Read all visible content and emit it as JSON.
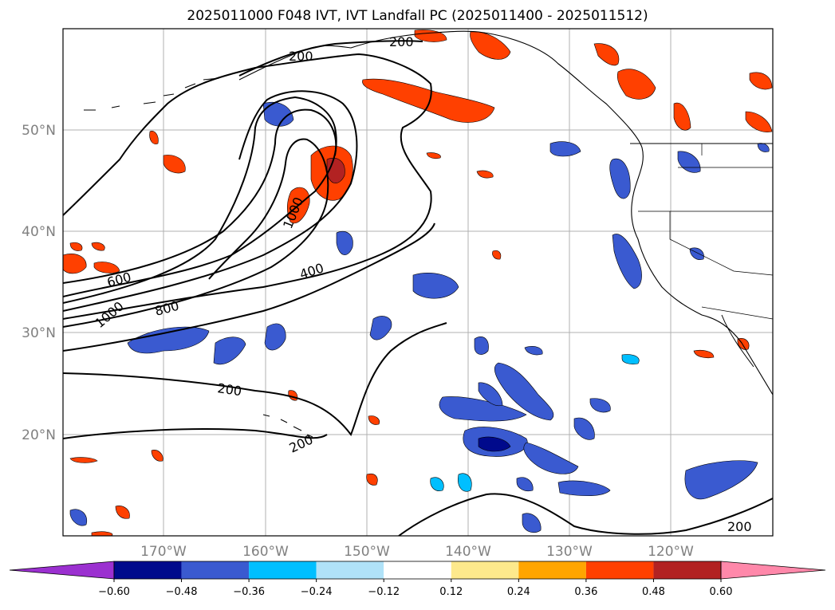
{
  "title": "2025011000 F048 IVT, IVT Landfall PC (2025011400 - 2025011512)",
  "lon_labels": [
    "170°W",
    "160°W",
    "150°W",
    "140°W",
    "130°W",
    "120°W"
  ],
  "lat_labels": [
    "50°N",
    "40°N",
    "30°N",
    "20°N"
  ],
  "contour_labels": [
    "200",
    "200",
    "1000",
    "600",
    "400",
    "1000",
    "800",
    "200",
    "200",
    "200"
  ],
  "colorbar": {
    "ticks": [
      "−0.60",
      "−0.48",
      "−0.36",
      "−0.24",
      "−0.12",
      "0.12",
      "0.24",
      "0.36",
      "0.48",
      "0.60"
    ],
    "colors": [
      "#9b30d0",
      "#000a8c",
      "#3a5ad0",
      "#00bfff",
      "#b0e2f8",
      "#ffffff",
      "#fde98c",
      "#ffa500",
      "#ff4000",
      "#b22222",
      "#ff88aa"
    ]
  },
  "colors": {
    "positive_anomaly": "#ff4000",
    "negative_anomaly": "#3a5ad0",
    "contour": "#000000",
    "grid": "#b0b0b0",
    "coastline": "#000000"
  }
}
